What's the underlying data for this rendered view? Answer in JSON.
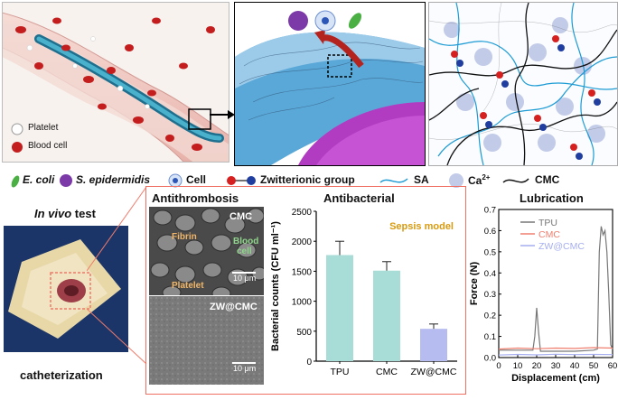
{
  "panel_vessel": {
    "platelet_label": "Platelet",
    "blood_cell_label": "Blood cell"
  },
  "legend": {
    "ecoli": "E. coli",
    "sepi": "S. epidermidis",
    "cell": "Cell",
    "zwitterionic": "Zwitterionic group",
    "sa": "SA",
    "ca_base": "Ca",
    "ca_sup": "2+",
    "cmc": "CMC"
  },
  "invivo": {
    "title_italic": "In vivo",
    "title_rest": " test",
    "caption": "catheterization"
  },
  "antithrombosis": {
    "title": "Antithrombosis",
    "top_label": "CMC",
    "fibrin": "Fibrin",
    "blood": "Blood",
    "cell": "cell",
    "platelet": "Platelet",
    "scale_top": "10 μm",
    "bottom_label": "ZW@CMC",
    "scale_bottom": "10 μm"
  },
  "antibacterial": {
    "title": "Antibacterial",
    "model_label": "Sepsis model"
  },
  "lubrication": {
    "title": "Lubrication"
  },
  "chart_data": [
    {
      "type": "bar",
      "title": "Antibacterial",
      "annotation": "Sepsis model",
      "categories": [
        "TPU",
        "CMC",
        "ZW@CMC"
      ],
      "values": [
        1770,
        1510,
        540
      ],
      "errors": [
        230,
        150,
        80
      ],
      "colors": [
        "#a8dcd6",
        "#a8dcd6",
        "#b6bcef"
      ],
      "ylabel": "Bacterial counts (CFU ml⁻¹)",
      "ylim": [
        0,
        2500
      ],
      "yticks": [
        0,
        500,
        1000,
        1500,
        2000,
        2500
      ]
    },
    {
      "type": "line",
      "title": "Lubrication",
      "xlabel": "Displacement (cm)",
      "ylabel": "Force (N)",
      "xlim": [
        0,
        60
      ],
      "ylim": [
        0,
        0.7
      ],
      "xticks": [
        0,
        10,
        20,
        30,
        40,
        50,
        60
      ],
      "yticks": [
        0.0,
        0.1,
        0.2,
        0.3,
        0.4,
        0.5,
        0.6,
        0.7
      ],
      "legend_position": "top-right",
      "series": [
        {
          "name": "TPU",
          "color": "#777777",
          "x": [
            0,
            18,
            19,
            20,
            21,
            22,
            30,
            40,
            50,
            52,
            53,
            54,
            55,
            56,
            57,
            58,
            59,
            60
          ],
          "y": [
            0.035,
            0.035,
            0.1,
            0.235,
            0.12,
            0.03,
            0.03,
            0.03,
            0.035,
            0.04,
            0.5,
            0.62,
            0.58,
            0.6,
            0.5,
            0.3,
            0.06,
            0.04
          ]
        },
        {
          "name": "CMC",
          "color": "#ef7f6f",
          "x": [
            0,
            10,
            20,
            30,
            40,
            50,
            60
          ],
          "y": [
            0.04,
            0.045,
            0.042,
            0.045,
            0.043,
            0.047,
            0.045
          ]
        },
        {
          "name": "ZW@CMC",
          "color": "#a6aef0",
          "x": [
            0,
            10,
            20,
            30,
            40,
            50,
            60
          ],
          "y": [
            0.012,
            0.015,
            0.013,
            0.016,
            0.014,
            0.015,
            0.014
          ]
        }
      ]
    }
  ]
}
